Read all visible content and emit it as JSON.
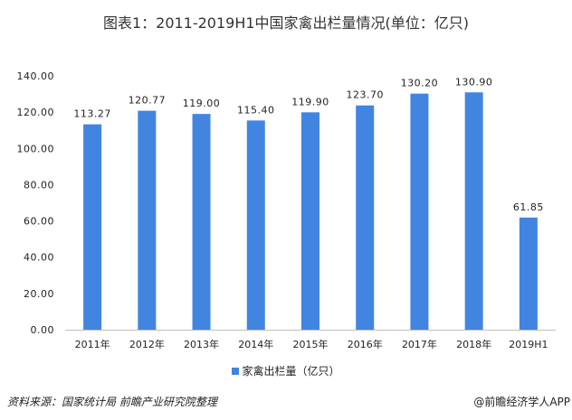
{
  "chart_data": {
    "type": "bar",
    "title": "图表1：2011-2019H1中国家禽出栏量情况(单位：亿只)",
    "categories": [
      "2011年",
      "2012年",
      "2013年",
      "2014年",
      "2015年",
      "2016年",
      "2017年",
      "2018年",
      "2019H1"
    ],
    "series": [
      {
        "name": "家禽出栏量（亿只）",
        "values": [
          113.27,
          120.77,
          119.0,
          115.4,
          119.9,
          123.7,
          130.2,
          130.9,
          61.85
        ]
      }
    ],
    "value_labels": [
      "113.27",
      "120.77",
      "119.00",
      "115.40",
      "119.90",
      "123.70",
      "130.20",
      "130.90",
      "61.85"
    ],
    "yticks": [
      "0.00",
      "20.00",
      "40.00",
      "60.00",
      "80.00",
      "100.00",
      "120.00",
      "140.00"
    ],
    "ylim": [
      0,
      140
    ],
    "grid": false,
    "legend": "bottom",
    "color": "#4285e0"
  },
  "source": "资料来源：国家统计局 前瞻产业研究院整理",
  "credit": "@前瞻经济学人APP"
}
